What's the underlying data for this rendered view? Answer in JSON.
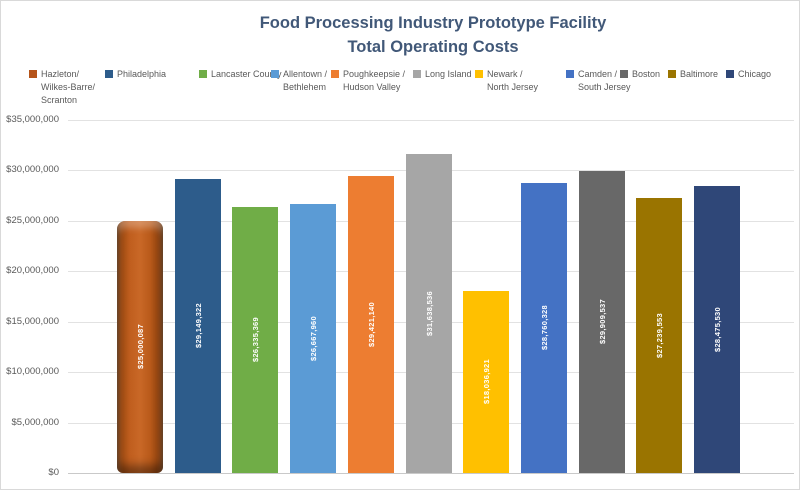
{
  "title": {
    "line1": "Food Processing Industry Prototype Facility",
    "line2": "Total Operating Costs"
  },
  "chart_data": {
    "type": "bar",
    "title": "Food Processing Industry Prototype Facility Total Operating Costs",
    "xlabel": "",
    "ylabel": "",
    "categories": [
      "Hazleton/ Wilkes-Barre/ Scranton",
      "Philadelphia",
      "Lancaster County",
      "Allentown / Bethlehem",
      "Poughkeepsie / Hudson Valley",
      "Long Island",
      "Newark / North Jersey",
      "Camden / South Jersey",
      "Boston",
      "Baltimore",
      "Chicago"
    ],
    "values": [
      25000087,
      29149322,
      26335369,
      26667960,
      29421140,
      31638536,
      18036921,
      28760328,
      29909537,
      27239553,
      28475530
    ],
    "value_labels": [
      "$25,000,087",
      "$29,149,322",
      "$26,335,369",
      "$26,667,960",
      "$29,421,140",
      "$31,638,536",
      "$18,036,921",
      "$28,760,328",
      "$29,909,537",
      "$27,239,553",
      "$28,475,530"
    ],
    "colors": [
      "#B5541A",
      "#2D5C8B",
      "#70AD47",
      "#5B9BD5",
      "#ED7D31",
      "#A6A6A6",
      "#FFC000",
      "#4472C4",
      "#686868",
      "#9A7400",
      "#2F4778"
    ],
    "first_bar_effect": "3d-bevel",
    "ylim": [
      0,
      35000000
    ],
    "yticks": [
      "$35,000,000",
      "$30,000,000",
      "$25,000,000",
      "$20,000,000",
      "$15,000,000",
      "$10,000,000",
      "$5,000,000",
      "$0"
    ],
    "grid": true,
    "legend_position": "top",
    "data_label_color": "#FFFFFF",
    "title_color": "#415878",
    "axis_text_color": "#595959"
  },
  "legend": {
    "items": [
      {
        "lines": [
          "Hazleton/",
          "Wilkes-Barre/",
          "Scranton"
        ]
      },
      {
        "lines": [
          "Philadelphia"
        ]
      },
      {
        "lines": [
          "Lancaster County"
        ]
      },
      {
        "lines": [
          "Allentown /",
          "Bethlehem"
        ]
      },
      {
        "lines": [
          "Poughkeepsie /",
          "Hudson Valley"
        ]
      },
      {
        "lines": [
          "Long Island"
        ]
      },
      {
        "lines": [
          "Newark /",
          "North Jersey"
        ]
      },
      {
        "lines": [
          "Camden /",
          "South Jersey"
        ]
      },
      {
        "lines": [
          "Boston"
        ]
      },
      {
        "lines": [
          "Baltimore"
        ]
      },
      {
        "lines": [
          "Chicago"
        ]
      }
    ]
  }
}
